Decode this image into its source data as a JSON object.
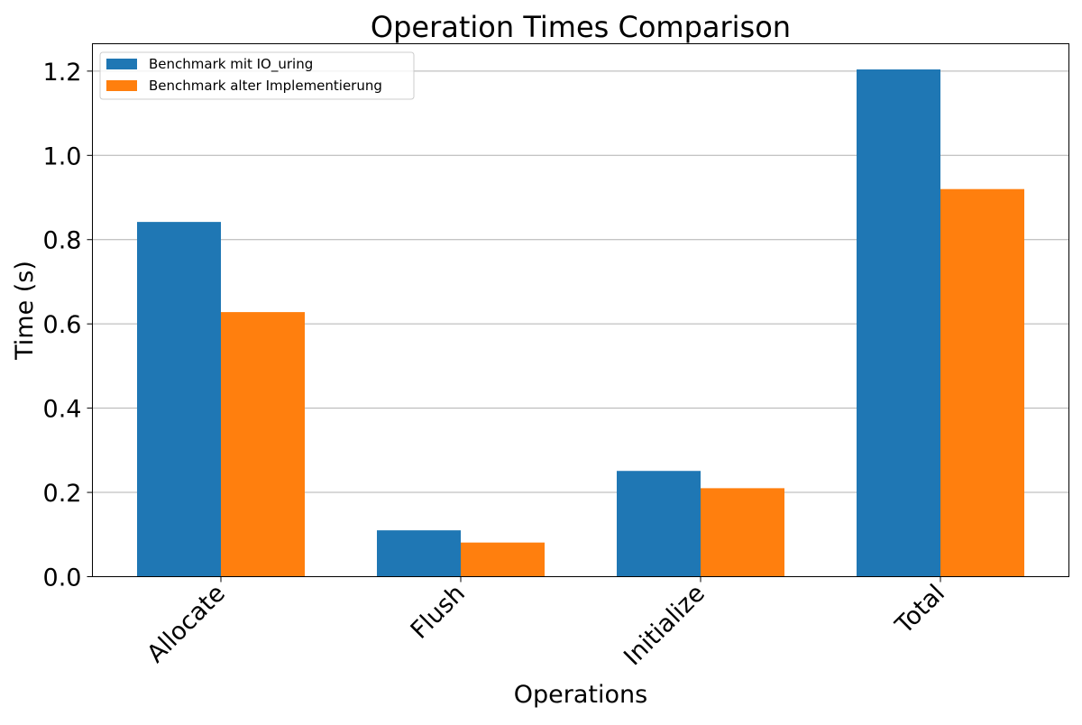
{
  "chart_data": {
    "type": "bar",
    "title": "Operation Times Comparison",
    "xlabel": "Operations",
    "ylabel": "Time (s)",
    "categories": [
      "Allocate",
      "Flush",
      "Initialize",
      "Total"
    ],
    "series": [
      {
        "name": "Benchmark mit IO_uring",
        "color": "#1f77b4",
        "values": [
          0.842,
          0.11,
          0.251,
          1.204
        ]
      },
      {
        "name": "Benchmark alter Implementierung",
        "color": "#ff7f0e",
        "values": [
          0.628,
          0.081,
          0.21,
          0.92
        ]
      }
    ],
    "ylim": [
      0,
      1.265
    ],
    "yticks": [
      0.0,
      0.2,
      0.4,
      0.6,
      0.8,
      1.0,
      1.2
    ],
    "ytick_labels": [
      "0.0",
      "0.2",
      "0.4",
      "0.6",
      "0.8",
      "1.0",
      "1.2"
    ],
    "grid": "y-major",
    "legend_position": "top-left",
    "xtick_rotation": 45
  }
}
